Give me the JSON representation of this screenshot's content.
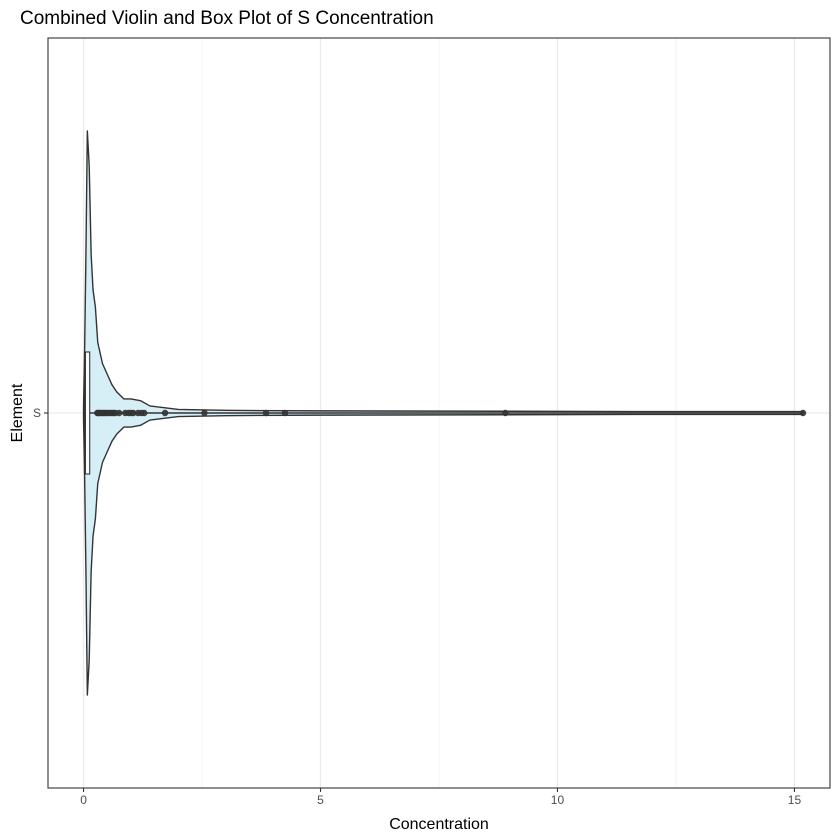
{
  "chart_data": {
    "type": "violin-box",
    "title": "Combined Violin and Box Plot of S Concentration",
    "xlabel": "Concentration",
    "ylabel": "Element",
    "xlim": [
      -0.75,
      15.75
    ],
    "x_ticks": [
      0,
      5,
      10,
      15
    ],
    "x_tick_labels": [
      "0",
      "5",
      "10",
      "15"
    ],
    "categories": [
      "S"
    ],
    "grid": true,
    "theme": "bw",
    "colors": {
      "violin_fill": "#d6eef5",
      "violin_stroke": "#333333",
      "box_fill": "#ffffff",
      "box_stroke": "#333333",
      "outlier": "#333333",
      "grid_major": "#ebebeb",
      "grid_minor": "#f4f4f4",
      "panel_border": "#333333"
    },
    "box": {
      "min": 0.0,
      "q1": 0.02,
      "median": 0.03,
      "q3": 0.13,
      "whisker_high": 0.28,
      "max": 15.18
    },
    "outliers": [
      0.29,
      0.31,
      0.33,
      0.36,
      0.39,
      0.42,
      0.45,
      0.48,
      0.52,
      0.56,
      0.6,
      0.63,
      0.67,
      0.75,
      0.88,
      0.95,
      1.0,
      1.05,
      1.15,
      1.22,
      1.28,
      1.72,
      2.55,
      3.85,
      4.25,
      8.9,
      15.18
    ],
    "violin_profile": [
      {
        "x": 0.0,
        "w": 0.004
      },
      {
        "x": 0.02,
        "w": 0.03
      },
      {
        "x": 0.05,
        "w": 0.09
      },
      {
        "x": 0.08,
        "w": 0.16
      },
      {
        "x": 0.12,
        "w": 0.14
      },
      {
        "x": 0.16,
        "w": 0.09
      },
      {
        "x": 0.2,
        "w": 0.07
      },
      {
        "x": 0.25,
        "w": 0.06
      },
      {
        "x": 0.3,
        "w": 0.04
      },
      {
        "x": 0.4,
        "w": 0.028
      },
      {
        "x": 0.5,
        "w": 0.022
      },
      {
        "x": 0.6,
        "w": 0.016
      },
      {
        "x": 0.7,
        "w": 0.012
      },
      {
        "x": 0.85,
        "w": 0.008
      },
      {
        "x": 1.0,
        "w": 0.008
      },
      {
        "x": 1.2,
        "w": 0.007
      },
      {
        "x": 1.4,
        "w": 0.004
      },
      {
        "x": 2.0,
        "w": 0.002
      },
      {
        "x": 3.0,
        "w": 0.0015
      },
      {
        "x": 5.0,
        "w": 0.0012
      },
      {
        "x": 9.0,
        "w": 0.001
      },
      {
        "x": 12.0,
        "w": 0.0008
      },
      {
        "x": 15.18,
        "w": 0.0008
      }
    ]
  }
}
